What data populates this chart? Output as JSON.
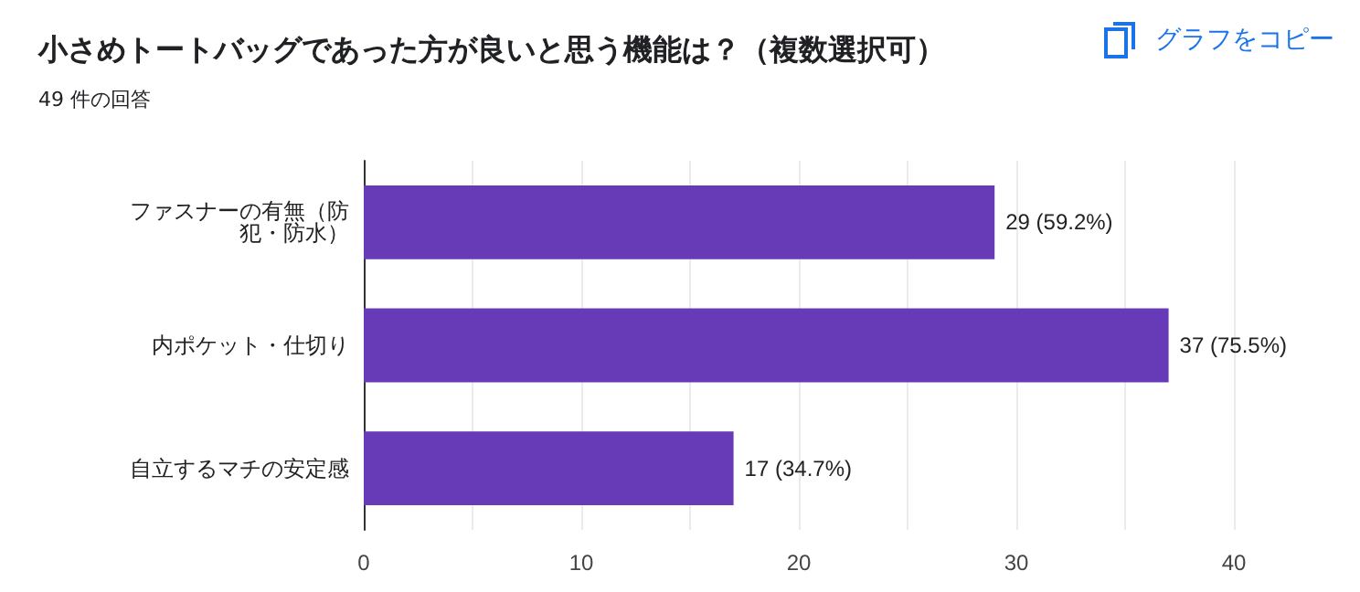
{
  "chart_data": {
    "type": "bar",
    "orientation": "horizontal",
    "title": "小さめトートバッグであった方が良いと思う機能は？（複数選択可）",
    "subtitle": "49 件の回答",
    "annotations": [
      "グラフをコピー"
    ],
    "categories": [
      "ファスナーの有無（防犯・防水）",
      "内ポケット・仕切り",
      "自立するマチの安定感"
    ],
    "values": [
      29,
      37,
      17
    ],
    "value_labels": [
      "29 (59.2%)",
      "37 (75.5%)",
      "17 (34.7%)"
    ],
    "color": "#673ab7",
    "xlim": [
      0,
      40
    ],
    "xticks": [
      0,
      {
        "value": 5,
        "label": null
      },
      10,
      {
        "value": 15,
        "label": null
      },
      20,
      {
        "value": 25,
        "label": null
      },
      30,
      {
        "value": 35,
        "label": null
      },
      40
    ],
    "grid": "x"
  }
}
